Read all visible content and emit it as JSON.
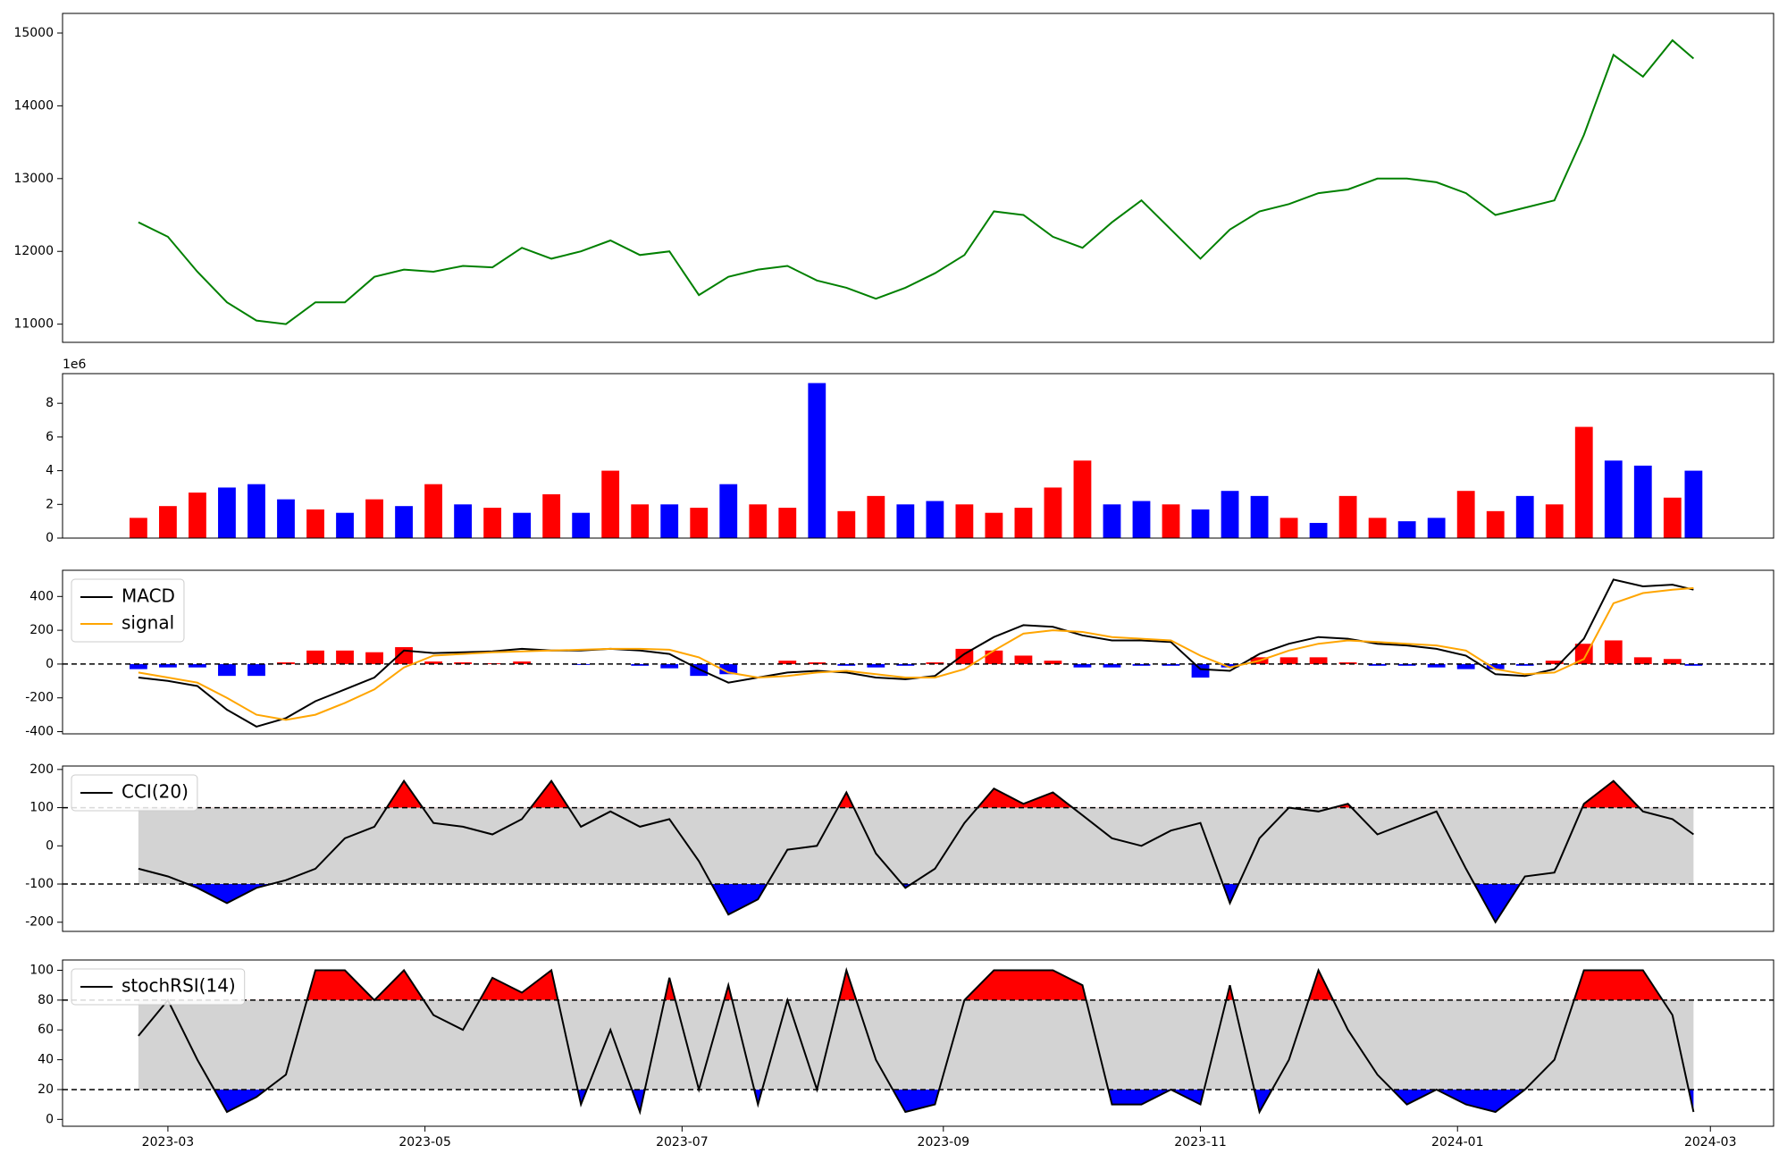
{
  "chart_data": [
    {
      "type": "line",
      "xlim": [
        -25,
        381
      ],
      "ylim": [
        10750,
        15270
      ],
      "yticks": [
        11000,
        12000,
        13000,
        14000,
        15000
      ],
      "x": [
        -7,
        0,
        7,
        14,
        21,
        28,
        35,
        42,
        49,
        56,
        63,
        70,
        77,
        84,
        91,
        98,
        105,
        112,
        119,
        126,
        133,
        140,
        147,
        154,
        161,
        168,
        175,
        182,
        189,
        196,
        203,
        210,
        217,
        224,
        231,
        238,
        245,
        252,
        259,
        266,
        273,
        280,
        287,
        294,
        301,
        308,
        315,
        322,
        329,
        336,
        343,
        350,
        357,
        362
      ],
      "series": [
        {
          "color": "#008000",
          "values": [
            12400,
            12200,
            11720,
            11300,
            11050,
            11000,
            11300,
            11300,
            11650,
            11750,
            11720,
            11800,
            11780,
            12050,
            11900,
            12000,
            12150,
            11950,
            12000,
            11400,
            11650,
            11750,
            11800,
            11600,
            11500,
            11350,
            11500,
            11700,
            11950,
            12550,
            12500,
            12200,
            12050,
            12400,
            12700,
            12300,
            11900,
            12300,
            12550,
            12650,
            12800,
            12850,
            13000,
            13000,
            12950,
            12800,
            12500,
            12600,
            12700,
            13600,
            14700,
            14400,
            14900,
            14650
          ]
        }
      ]
    },
    {
      "type": "bar",
      "xlim": [
        -25,
        381
      ],
      "ylim": [
        0,
        9.76
      ],
      "yticks": [
        0,
        2,
        4,
        6,
        8
      ],
      "offset_label": "1e6",
      "x": [
        -7,
        0,
        7,
        14,
        21,
        28,
        35,
        42,
        49,
        56,
        63,
        70,
        77,
        84,
        91,
        98,
        105,
        112,
        119,
        126,
        133,
        140,
        147,
        154,
        161,
        168,
        175,
        182,
        189,
        196,
        203,
        210,
        217,
        224,
        231,
        238,
        245,
        252,
        259,
        266,
        273,
        280,
        287,
        294,
        301,
        308,
        315,
        322,
        329,
        336,
        343,
        350,
        357,
        362
      ],
      "values": [
        1.2,
        1.9,
        2.7,
        3.0,
        3.2,
        2.3,
        1.7,
        1.5,
        2.3,
        1.9,
        3.2,
        2.0,
        1.8,
        1.5,
        2.6,
        1.5,
        4.0,
        2.0,
        2.0,
        1.8,
        3.2,
        2.0,
        1.8,
        9.2,
        1.6,
        2.5,
        2.0,
        2.2,
        2.0,
        1.5,
        1.8,
        3.0,
        4.6,
        2.0,
        2.2,
        2.0,
        1.7,
        2.8,
        2.5,
        1.2,
        0.9,
        2.5,
        1.2,
        1.0,
        1.2,
        2.8,
        1.6,
        2.5,
        2.0,
        6.6,
        4.6,
        4.3,
        2.4,
        4.0
      ],
      "colors": [
        "red",
        "red",
        "red",
        "blue",
        "blue",
        "blue",
        "red",
        "blue",
        "red",
        "blue",
        "red",
        "blue",
        "red",
        "blue",
        "red",
        "blue",
        "red",
        "red",
        "blue",
        "red",
        "blue",
        "red",
        "red",
        "blue",
        "red",
        "red",
        "blue",
        "blue",
        "red",
        "red",
        "red",
        "red",
        "red",
        "blue",
        "blue",
        "red",
        "blue",
        "blue",
        "blue",
        "red",
        "blue",
        "red",
        "red",
        "blue",
        "blue",
        "red",
        "red",
        "blue",
        "red",
        "red",
        "blue",
        "blue",
        "red",
        "blue"
      ]
    },
    {
      "type": "macd",
      "xlim": [
        -25,
        381
      ],
      "ylim": [
        -413,
        555
      ],
      "yticks": [
        -400,
        -200,
        0,
        200,
        400
      ],
      "zero_line": true,
      "legend": "upper left",
      "x": [
        -7,
        0,
        7,
        14,
        21,
        28,
        35,
        42,
        49,
        56,
        63,
        70,
        77,
        84,
        91,
        98,
        105,
        112,
        119,
        126,
        133,
        140,
        147,
        154,
        161,
        168,
        175,
        182,
        189,
        196,
        203,
        210,
        217,
        224,
        231,
        238,
        245,
        252,
        259,
        266,
        273,
        280,
        287,
        294,
        301,
        308,
        315,
        322,
        329,
        336,
        343,
        350,
        357,
        362
      ],
      "series": [
        {
          "name": "MACD",
          "color": "black",
          "values": [
            -80,
            -100,
            -130,
            -270,
            -370,
            -320,
            -220,
            -150,
            -80,
            80,
            65,
            70,
            75,
            90,
            80,
            80,
            90,
            80,
            60,
            -30,
            -110,
            -80,
            -50,
            -40,
            -50,
            -80,
            -90,
            -70,
            60,
            160,
            230,
            220,
            170,
            140,
            140,
            130,
            -30,
            -40,
            60,
            120,
            160,
            150,
            120,
            110,
            90,
            50,
            -60,
            -70,
            -30,
            150,
            500,
            460,
            470,
            440
          ]
        },
        {
          "name": "signal",
          "color": "orange",
          "values": [
            -50,
            -80,
            -110,
            -200,
            -300,
            -330,
            -300,
            -230,
            -150,
            -20,
            50,
            60,
            70,
            75,
            80,
            85,
            90,
            90,
            85,
            40,
            -50,
            -80,
            -70,
            -50,
            -40,
            -60,
            -80,
            -80,
            -30,
            80,
            180,
            200,
            190,
            160,
            150,
            140,
            50,
            -20,
            20,
            80,
            120,
            140,
            130,
            120,
            110,
            80,
            -30,
            -60,
            -50,
            30,
            360,
            420,
            440,
            450
          ]
        }
      ],
      "histogram": {
        "pos_color": "red",
        "neg_color": "blue",
        "values": [
          -30,
          -20,
          -20,
          -70,
          -70,
          10,
          80,
          80,
          70,
          100,
          15,
          10,
          5,
          15,
          0,
          -5,
          0,
          -10,
          -25,
          -70,
          -60,
          0,
          20,
          10,
          -10,
          -20,
          -10,
          10,
          90,
          80,
          50,
          20,
          -20,
          -20,
          -10,
          -10,
          -80,
          -20,
          40,
          40,
          40,
          10,
          -10,
          -10,
          -20,
          -30,
          -30,
          -10,
          20,
          120,
          140,
          40,
          30,
          -10
        ]
      }
    },
    {
      "type": "band",
      "xlim": [
        -25,
        381
      ],
      "ylim": [
        -224,
        209
      ],
      "yticks": [
        -200,
        -100,
        0,
        100,
        200
      ],
      "thresholds": [
        -100,
        100
      ],
      "band_color": "lightgray",
      "above_color": "red",
      "below_color": "blue",
      "legend": "upper left",
      "x": [
        -7,
        0,
        7,
        14,
        21,
        28,
        35,
        42,
        49,
        56,
        63,
        70,
        77,
        84,
        91,
        98,
        105,
        112,
        119,
        126,
        133,
        140,
        147,
        154,
        161,
        168,
        175,
        182,
        189,
        196,
        203,
        210,
        217,
        224,
        231,
        238,
        245,
        252,
        259,
        266,
        273,
        280,
        287,
        294,
        301,
        308,
        315,
        322,
        329,
        336,
        343,
        350,
        357,
        362
      ],
      "series": [
        {
          "name": "CCI(20)",
          "color": "black",
          "values": [
            -60,
            -80,
            -110,
            -150,
            -110,
            -90,
            -60,
            20,
            50,
            170,
            60,
            50,
            30,
            70,
            170,
            50,
            90,
            50,
            70,
            -40,
            -180,
            -140,
            -10,
            0,
            140,
            -20,
            -110,
            -60,
            60,
            150,
            110,
            140,
            80,
            20,
            0,
            40,
            60,
            -150,
            20,
            100,
            90,
            110,
            30,
            60,
            90,
            -60,
            -200,
            -80,
            -70,
            110,
            170,
            90,
            70,
            30
          ]
        }
      ]
    },
    {
      "type": "band",
      "xlim": [
        -25,
        381
      ],
      "ylim": [
        -4.6,
        106.9
      ],
      "yticks": [
        0,
        20,
        40,
        60,
        80,
        100
      ],
      "thresholds": [
        20,
        80
      ],
      "band_color": "lightgray",
      "above_color": "red",
      "below_color": "blue",
      "legend": "upper left",
      "xticks": [
        {
          "value": 0,
          "label": "2023-03"
        },
        {
          "value": 61,
          "label": "2023-05"
        },
        {
          "value": 122,
          "label": "2023-07"
        },
        {
          "value": 184,
          "label": "2023-09"
        },
        {
          "value": 245,
          "label": "2023-11"
        },
        {
          "value": 306,
          "label": "2024-01"
        },
        {
          "value": 366,
          "label": "2024-03"
        }
      ],
      "x": [
        -7,
        0,
        7,
        14,
        21,
        28,
        35,
        42,
        49,
        56,
        63,
        70,
        77,
        84,
        91,
        98,
        105,
        112,
        119,
        126,
        133,
        140,
        147,
        154,
        161,
        168,
        175,
        182,
        189,
        196,
        203,
        210,
        217,
        224,
        231,
        238,
        245,
        252,
        259,
        266,
        273,
        280,
        287,
        294,
        301,
        308,
        315,
        322,
        329,
        336,
        343,
        350,
        357,
        362
      ],
      "series": [
        {
          "name": "stochRSI(14)",
          "color": "black",
          "values": [
            56,
            80,
            40,
            5,
            15,
            30,
            100,
            100,
            80,
            100,
            70,
            60,
            95,
            85,
            100,
            10,
            60,
            5,
            95,
            20,
            90,
            10,
            80,
            20,
            100,
            40,
            5,
            10,
            80,
            100,
            100,
            100,
            90,
            10,
            10,
            20,
            10,
            90,
            5,
            40,
            100,
            60,
            30,
            10,
            20,
            10,
            5,
            20,
            40,
            100,
            100,
            100,
            70,
            5
          ]
        }
      ]
    }
  ]
}
